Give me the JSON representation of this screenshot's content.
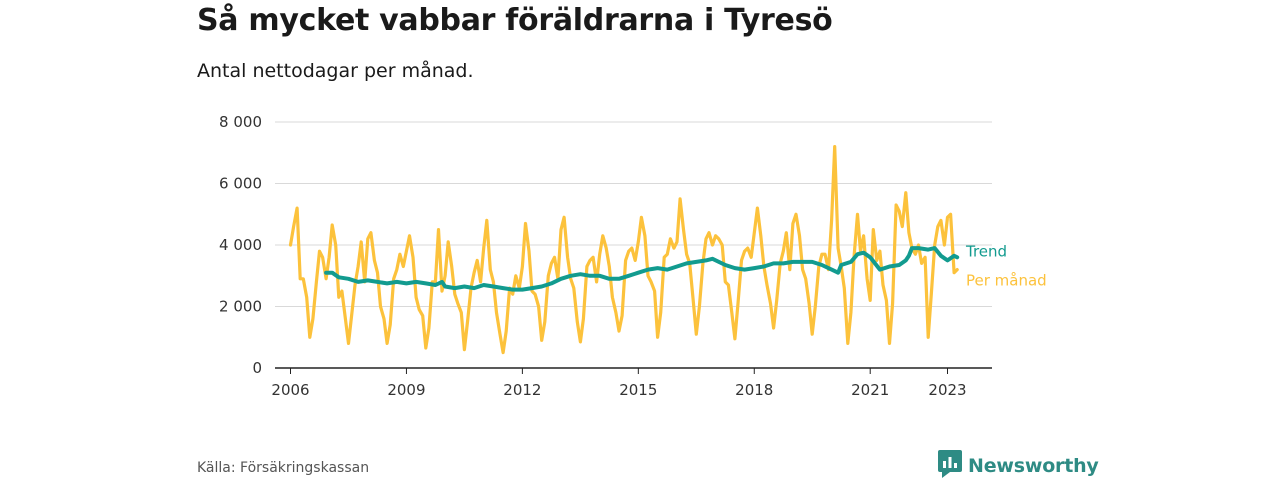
{
  "header": {
    "title": "Så mycket vabbar föräldrarna i Tyresö",
    "subtitle": "Antal nettodagar per månad."
  },
  "footer": {
    "source": "Källa: Försäkringskassan",
    "brand": "Newsworthy",
    "brand_icon": "newsworthy-logo-icon"
  },
  "colors": {
    "trend": "#129b8f",
    "monthly": "#fcc23c",
    "grid": "#d9d9d9",
    "axis": "#222222",
    "brand": "#2e8b84"
  },
  "chart_data": {
    "type": "line",
    "title": "Så mycket vabbar föräldrarna i Tyresö",
    "subtitle": "Antal nettodagar per månad.",
    "xlabel": "",
    "ylabel": "",
    "xlim": [
      2006,
      2024.2
    ],
    "ylim": [
      0,
      8000
    ],
    "grid": true,
    "legend": "end-of-line labels",
    "x_ticks": [
      2006,
      2009,
      2012,
      2015,
      2018,
      2021,
      2023
    ],
    "y_ticks": [
      {
        "value": 0,
        "label": "0"
      },
      {
        "value": 2000,
        "label": "2 000"
      },
      {
        "value": 4000,
        "label": "4 000"
      },
      {
        "value": 6000,
        "label": "6 000"
      },
      {
        "value": 8000,
        "label": "8 000"
      }
    ],
    "series": [
      {
        "name": "Per månad",
        "color": "#fcc23c",
        "points": [
          [
            2006.0,
            4000
          ],
          [
            2006.08,
            4600
          ],
          [
            2006.17,
            5200
          ],
          [
            2006.25,
            2900
          ],
          [
            2006.33,
            2900
          ],
          [
            2006.42,
            2300
          ],
          [
            2006.5,
            1000
          ],
          [
            2006.58,
            1600
          ],
          [
            2006.67,
            2800
          ],
          [
            2006.75,
            3800
          ],
          [
            2006.83,
            3600
          ],
          [
            2006.92,
            2900
          ],
          [
            2007.0,
            3600
          ],
          [
            2007.08,
            4650
          ],
          [
            2007.17,
            4000
          ],
          [
            2007.25,
            2300
          ],
          [
            2007.33,
            2500
          ],
          [
            2007.42,
            1600
          ],
          [
            2007.5,
            800
          ],
          [
            2007.58,
            1700
          ],
          [
            2007.67,
            2700
          ],
          [
            2007.75,
            3300
          ],
          [
            2007.83,
            4100
          ],
          [
            2007.92,
            2800
          ],
          [
            2008.0,
            4200
          ],
          [
            2008.08,
            4400
          ],
          [
            2008.17,
            3500
          ],
          [
            2008.25,
            3100
          ],
          [
            2008.33,
            2000
          ],
          [
            2008.42,
            1600
          ],
          [
            2008.5,
            800
          ],
          [
            2008.58,
            1400
          ],
          [
            2008.67,
            2900
          ],
          [
            2008.75,
            3200
          ],
          [
            2008.83,
            3700
          ],
          [
            2008.92,
            3300
          ],
          [
            2009.0,
            3800
          ],
          [
            2009.08,
            4300
          ],
          [
            2009.17,
            3600
          ],
          [
            2009.25,
            2300
          ],
          [
            2009.33,
            1900
          ],
          [
            2009.42,
            1700
          ],
          [
            2009.5,
            650
          ],
          [
            2009.58,
            1300
          ],
          [
            2009.67,
            2800
          ],
          [
            2009.75,
            2800
          ],
          [
            2009.83,
            4500
          ],
          [
            2009.92,
            2500
          ],
          [
            2010.0,
            3000
          ],
          [
            2010.08,
            4100
          ],
          [
            2010.17,
            3300
          ],
          [
            2010.25,
            2400
          ],
          [
            2010.33,
            2100
          ],
          [
            2010.42,
            1800
          ],
          [
            2010.5,
            600
          ],
          [
            2010.58,
            1500
          ],
          [
            2010.67,
            2600
          ],
          [
            2010.75,
            3100
          ],
          [
            2010.83,
            3500
          ],
          [
            2010.92,
            2800
          ],
          [
            2011.0,
            3900
          ],
          [
            2011.08,
            4800
          ],
          [
            2011.17,
            3200
          ],
          [
            2011.25,
            2800
          ],
          [
            2011.33,
            1800
          ],
          [
            2011.42,
            1100
          ],
          [
            2011.5,
            500
          ],
          [
            2011.58,
            1200
          ],
          [
            2011.67,
            2600
          ],
          [
            2011.75,
            2400
          ],
          [
            2011.83,
            3000
          ],
          [
            2011.92,
            2600
          ],
          [
            2012.0,
            3300
          ],
          [
            2012.08,
            4700
          ],
          [
            2012.17,
            3800
          ],
          [
            2012.25,
            2500
          ],
          [
            2012.33,
            2400
          ],
          [
            2012.42,
            2000
          ],
          [
            2012.5,
            900
          ],
          [
            2012.58,
            1500
          ],
          [
            2012.67,
            3000
          ],
          [
            2012.75,
            3400
          ],
          [
            2012.83,
            3600
          ],
          [
            2012.92,
            2900
          ],
          [
            2013.0,
            4500
          ],
          [
            2013.08,
            4900
          ],
          [
            2013.17,
            3600
          ],
          [
            2013.25,
            2900
          ],
          [
            2013.33,
            2600
          ],
          [
            2013.42,
            1500
          ],
          [
            2013.5,
            850
          ],
          [
            2013.58,
            1600
          ],
          [
            2013.67,
            3300
          ],
          [
            2013.75,
            3500
          ],
          [
            2013.83,
            3600
          ],
          [
            2013.92,
            2800
          ],
          [
            2014.0,
            3700
          ],
          [
            2014.08,
            4300
          ],
          [
            2014.17,
            3900
          ],
          [
            2014.25,
            3300
          ],
          [
            2014.33,
            2300
          ],
          [
            2014.42,
            1800
          ],
          [
            2014.5,
            1200
          ],
          [
            2014.58,
            1700
          ],
          [
            2014.67,
            3500
          ],
          [
            2014.75,
            3800
          ],
          [
            2014.83,
            3900
          ],
          [
            2014.92,
            3500
          ],
          [
            2015.0,
            4100
          ],
          [
            2015.08,
            4900
          ],
          [
            2015.17,
            4300
          ],
          [
            2015.25,
            3000
          ],
          [
            2015.33,
            2800
          ],
          [
            2015.42,
            2500
          ],
          [
            2015.5,
            1000
          ],
          [
            2015.58,
            1800
          ],
          [
            2015.67,
            3600
          ],
          [
            2015.75,
            3700
          ],
          [
            2015.83,
            4200
          ],
          [
            2015.92,
            3900
          ],
          [
            2016.0,
            4100
          ],
          [
            2016.08,
            5500
          ],
          [
            2016.17,
            4500
          ],
          [
            2016.25,
            3700
          ],
          [
            2016.33,
            3400
          ],
          [
            2016.42,
            2200
          ],
          [
            2016.5,
            1100
          ],
          [
            2016.58,
            2000
          ],
          [
            2016.67,
            3400
          ],
          [
            2016.75,
            4200
          ],
          [
            2016.83,
            4400
          ],
          [
            2016.92,
            4000
          ],
          [
            2017.0,
            4300
          ],
          [
            2017.08,
            4200
          ],
          [
            2017.17,
            4000
          ],
          [
            2017.25,
            2800
          ],
          [
            2017.33,
            2700
          ],
          [
            2017.42,
            1800
          ],
          [
            2017.5,
            950
          ],
          [
            2017.58,
            2100
          ],
          [
            2017.67,
            3500
          ],
          [
            2017.75,
            3800
          ],
          [
            2017.83,
            3900
          ],
          [
            2017.92,
            3600
          ],
          [
            2018.0,
            4400
          ],
          [
            2018.08,
            5200
          ],
          [
            2018.17,
            4300
          ],
          [
            2018.25,
            3300
          ],
          [
            2018.33,
            2700
          ],
          [
            2018.42,
            2100
          ],
          [
            2018.5,
            1300
          ],
          [
            2018.58,
            2200
          ],
          [
            2018.67,
            3400
          ],
          [
            2018.75,
            3800
          ],
          [
            2018.83,
            4400
          ],
          [
            2018.92,
            3200
          ],
          [
            2019.0,
            4700
          ],
          [
            2019.08,
            5000
          ],
          [
            2019.17,
            4300
          ],
          [
            2019.25,
            3200
          ],
          [
            2019.33,
            2900
          ],
          [
            2019.42,
            2100
          ],
          [
            2019.5,
            1100
          ],
          [
            2019.58,
            2000
          ],
          [
            2019.67,
            3300
          ],
          [
            2019.75,
            3700
          ],
          [
            2019.83,
            3700
          ],
          [
            2019.92,
            3200
          ],
          [
            2020.0,
            4800
          ],
          [
            2020.08,
            7200
          ],
          [
            2020.17,
            3900
          ],
          [
            2020.25,
            3300
          ],
          [
            2020.33,
            2600
          ],
          [
            2020.42,
            800
          ],
          [
            2020.5,
            1800
          ],
          [
            2020.58,
            3600
          ],
          [
            2020.67,
            5000
          ],
          [
            2020.75,
            3800
          ],
          [
            2020.83,
            4300
          ],
          [
            2020.92,
            2900
          ],
          [
            2021.0,
            2200
          ],
          [
            2021.08,
            4500
          ],
          [
            2021.17,
            3500
          ],
          [
            2021.25,
            3800
          ],
          [
            2021.33,
            2700
          ],
          [
            2021.42,
            2200
          ],
          [
            2021.5,
            800
          ],
          [
            2021.58,
            2100
          ],
          [
            2021.67,
            5300
          ],
          [
            2021.75,
            5100
          ],
          [
            2021.83,
            4600
          ],
          [
            2021.92,
            5700
          ],
          [
            2022.0,
            4400
          ],
          [
            2022.08,
            3900
          ],
          [
            2022.17,
            3700
          ],
          [
            2022.25,
            4000
          ],
          [
            2022.33,
            3400
          ],
          [
            2022.42,
            3600
          ],
          [
            2022.5,
            1000
          ],
          [
            2022.58,
            2400
          ],
          [
            2022.67,
            4000
          ],
          [
            2022.75,
            4600
          ],
          [
            2022.83,
            4800
          ],
          [
            2022.92,
            4000
          ],
          [
            2023.0,
            4900
          ],
          [
            2023.08,
            5000
          ],
          [
            2023.17,
            3100
          ],
          [
            2023.25,
            3200
          ]
        ]
      },
      {
        "name": "Trend",
        "color": "#129b8f",
        "points": [
          [
            2006.92,
            3100
          ],
          [
            2007.08,
            3100
          ],
          [
            2007.25,
            2950
          ],
          [
            2007.5,
            2900
          ],
          [
            2007.75,
            2800
          ],
          [
            2008.0,
            2850
          ],
          [
            2008.25,
            2800
          ],
          [
            2008.5,
            2750
          ],
          [
            2008.75,
            2800
          ],
          [
            2009.0,
            2750
          ],
          [
            2009.25,
            2800
          ],
          [
            2009.5,
            2750
          ],
          [
            2009.75,
            2700
          ],
          [
            2009.92,
            2800
          ],
          [
            2010.0,
            2650
          ],
          [
            2010.25,
            2600
          ],
          [
            2010.5,
            2650
          ],
          [
            2010.75,
            2600
          ],
          [
            2011.0,
            2700
          ],
          [
            2011.25,
            2650
          ],
          [
            2011.5,
            2600
          ],
          [
            2011.75,
            2550
          ],
          [
            2012.0,
            2550
          ],
          [
            2012.25,
            2600
          ],
          [
            2012.5,
            2650
          ],
          [
            2012.75,
            2750
          ],
          [
            2013.0,
            2900
          ],
          [
            2013.25,
            3000
          ],
          [
            2013.5,
            3050
          ],
          [
            2013.75,
            3000
          ],
          [
            2014.0,
            3000
          ],
          [
            2014.25,
            2900
          ],
          [
            2014.5,
            2900
          ],
          [
            2014.75,
            3000
          ],
          [
            2015.0,
            3100
          ],
          [
            2015.25,
            3200
          ],
          [
            2015.5,
            3250
          ],
          [
            2015.75,
            3200
          ],
          [
            2016.0,
            3300
          ],
          [
            2016.25,
            3400
          ],
          [
            2016.5,
            3450
          ],
          [
            2016.75,
            3500
          ],
          [
            2016.92,
            3550
          ],
          [
            2017.25,
            3350
          ],
          [
            2017.5,
            3250
          ],
          [
            2017.75,
            3200
          ],
          [
            2018.0,
            3250
          ],
          [
            2018.25,
            3300
          ],
          [
            2018.5,
            3400
          ],
          [
            2018.75,
            3400
          ],
          [
            2019.0,
            3450
          ],
          [
            2019.25,
            3450
          ],
          [
            2019.5,
            3450
          ],
          [
            2019.75,
            3350
          ],
          [
            2020.0,
            3200
          ],
          [
            2020.17,
            3100
          ],
          [
            2020.25,
            3350
          ],
          [
            2020.5,
            3450
          ],
          [
            2020.67,
            3700
          ],
          [
            2020.83,
            3750
          ],
          [
            2021.0,
            3600
          ],
          [
            2021.25,
            3200
          ],
          [
            2021.5,
            3300
          ],
          [
            2021.75,
            3350
          ],
          [
            2021.92,
            3500
          ],
          [
            2022.0,
            3650
          ],
          [
            2022.08,
            3900
          ],
          [
            2022.25,
            3900
          ],
          [
            2022.5,
            3850
          ],
          [
            2022.67,
            3900
          ],
          [
            2022.83,
            3650
          ],
          [
            2023.0,
            3500
          ],
          [
            2023.17,
            3650
          ],
          [
            2023.25,
            3600
          ]
        ]
      }
    ]
  }
}
